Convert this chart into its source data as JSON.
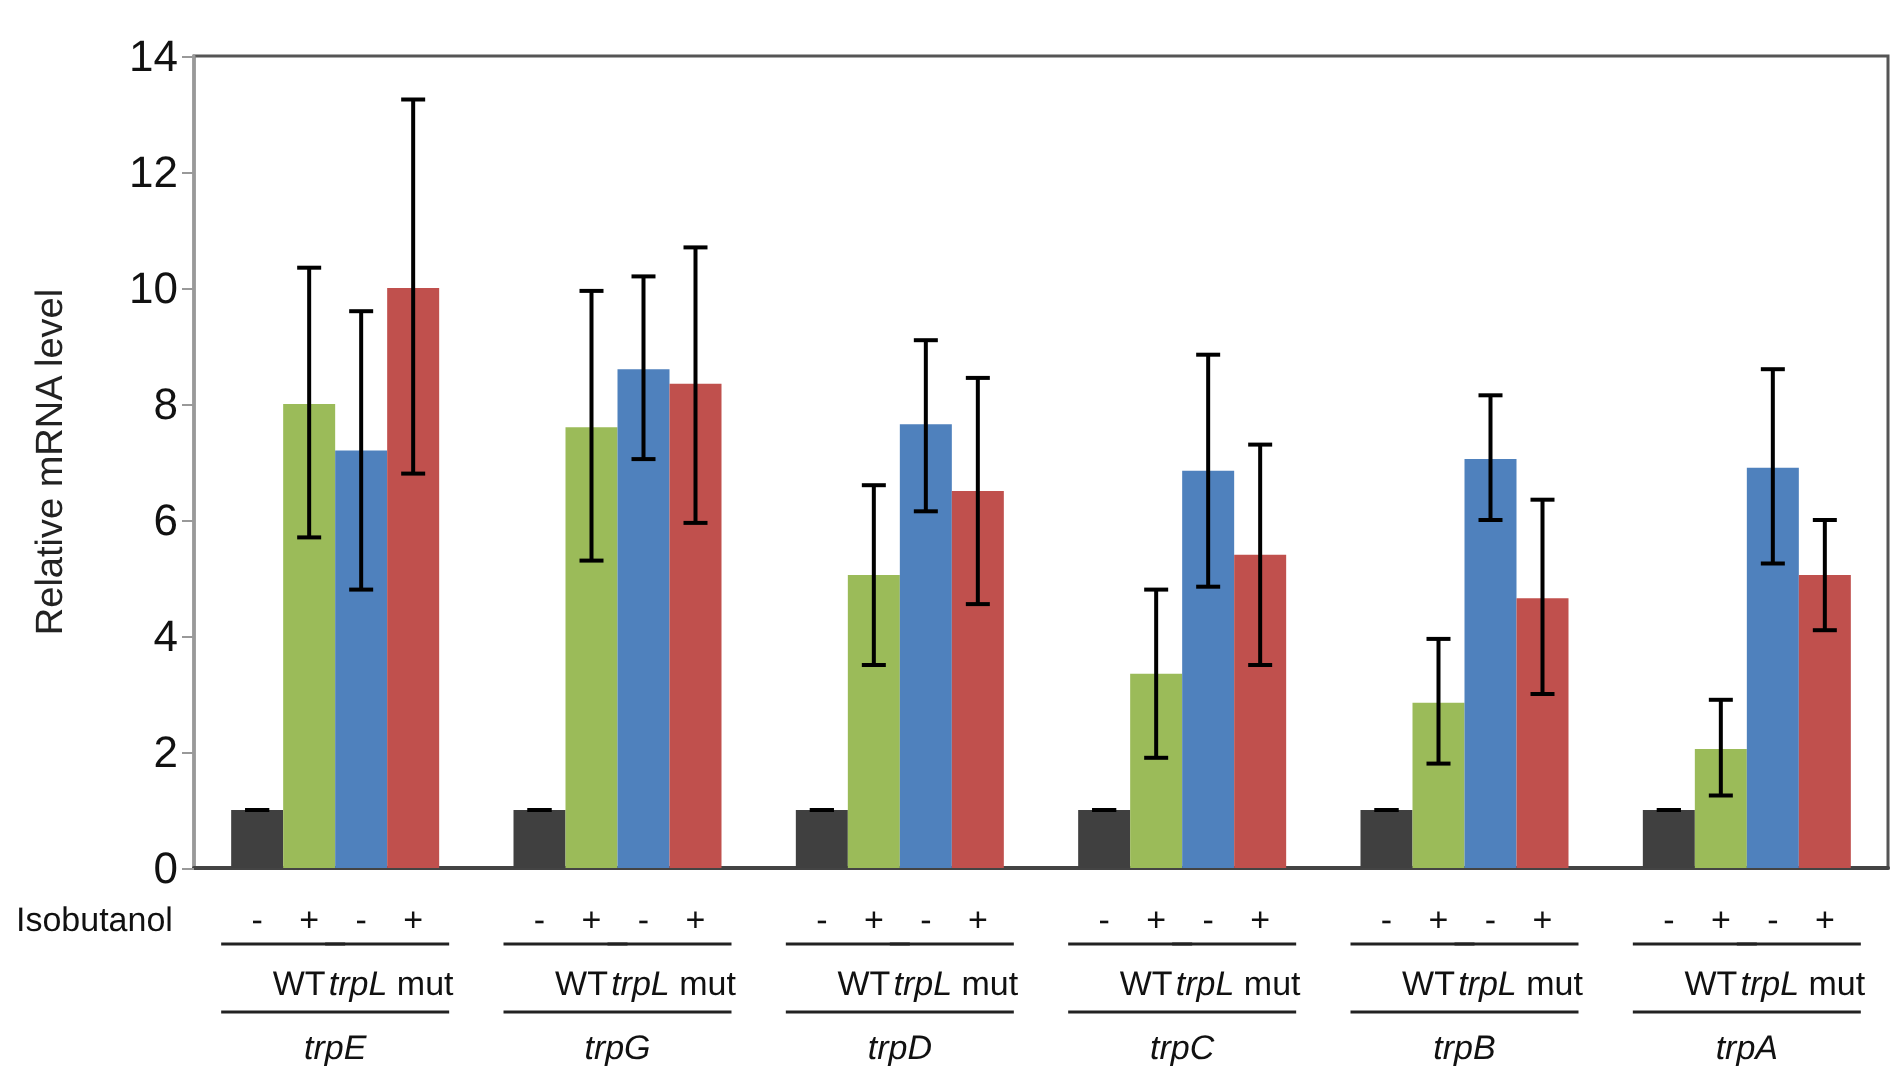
{
  "chart_data": {
    "type": "bar",
    "ylabel": "Relative mRNA level",
    "categories": [
      "trpE",
      "trpG",
      "trpD",
      "trpC",
      "trpB",
      "trpA"
    ],
    "series": [
      {
        "color": "#404040",
        "values": [
          1,
          1,
          1,
          1,
          1,
          1
        ],
        "errors": [
          0,
          0,
          0,
          0,
          0,
          0
        ]
      },
      {
        "color": "#9bbb59",
        "values": [
          8.0,
          7.6,
          5.05,
          3.35,
          2.85,
          2.05
        ],
        "errors": [
          [
            5.7,
            10.35
          ],
          [
            5.3,
            9.95
          ],
          [
            3.5,
            6.6
          ],
          [
            1.9,
            4.8
          ],
          [
            1.8,
            3.95
          ],
          [
            1.25,
            2.9
          ]
        ]
      },
      {
        "color": "#4f81bd",
        "values": [
          7.2,
          8.6,
          7.65,
          6.85,
          7.05,
          6.9
        ],
        "errors": [
          [
            4.8,
            9.6
          ],
          [
            7.05,
            10.2
          ],
          [
            6.15,
            9.1
          ],
          [
            4.85,
            8.85
          ],
          [
            6.0,
            8.15
          ],
          [
            5.25,
            8.6
          ]
        ]
      },
      {
        "color": "#c0504d",
        "values": [
          10.0,
          8.35,
          6.5,
          5.4,
          4.65,
          5.05
        ],
        "errors": [
          [
            6.8,
            13.25
          ],
          [
            5.95,
            10.7
          ],
          [
            4.55,
            8.45
          ],
          [
            3.5,
            7.3
          ],
          [
            3.0,
            6.35
          ],
          [
            4.1,
            6.0
          ]
        ]
      }
    ],
    "ylim": [
      0,
      14
    ],
    "yticks": [
      0,
      2,
      4,
      6,
      8,
      10,
      12,
      14
    ],
    "grid": false,
    "annotations": [
      "Isobutanol",
      "-",
      "+",
      "WT",
      "trpL mut"
    ]
  }
}
